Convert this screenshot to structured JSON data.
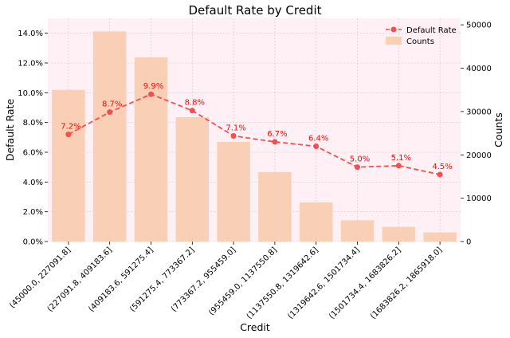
{
  "chart_data": {
    "type": "bar+line",
    "title": "Default Rate by Credit",
    "xlabel": "Credit",
    "ylabel_left": "Default Rate",
    "ylabel_right": "Counts",
    "categories": [
      "(45000.0, 227091.8]",
      "(227091.8, 409183.6]",
      "(409183.6, 591275.4]",
      "(591275.4, 773367.2]",
      "(773367.2, 955459.0]",
      "(955459.0, 1137550.8]",
      "(1137550.8, 1319642.6]",
      "(1319642.6, 1501734.4]",
      "(1501734.4, 1683826.2]",
      "(1683826.2, 1865918.0]"
    ],
    "series": [
      {
        "name": "Counts",
        "type": "bar",
        "axis": "right",
        "color": "#f9cfb6",
        "values": [
          35000,
          48500,
          42500,
          28700,
          23000,
          16000,
          9000,
          4900,
          3400,
          2100
        ]
      },
      {
        "name": "Default Rate",
        "type": "line",
        "axis": "left",
        "color": "#f05050",
        "values": [
          7.2,
          8.7,
          9.9,
          8.8,
          7.1,
          6.7,
          6.4,
          5.0,
          5.1,
          4.5
        ],
        "labels": [
          "7.2%",
          "8.7%",
          "9.9%",
          "8.8%",
          "7.1%",
          "6.7%",
          "6.4%",
          "5.0%",
          "5.1%",
          "4.5%"
        ]
      }
    ],
    "ylim_left": [
      0,
      15
    ],
    "yticks_left": [
      "0.0%",
      "2.0%",
      "4.0%",
      "6.0%",
      "8.0%",
      "10.0%",
      "12.0%",
      "14.0%"
    ],
    "ylim_right": [
      0,
      51500
    ],
    "yticks_right": [
      "0",
      "10000",
      "20000",
      "30000",
      "40000",
      "50000"
    ],
    "grid": true,
    "plot_background": "#fff0f5",
    "legend_position": "top-right",
    "label_color": "#e8120c"
  }
}
